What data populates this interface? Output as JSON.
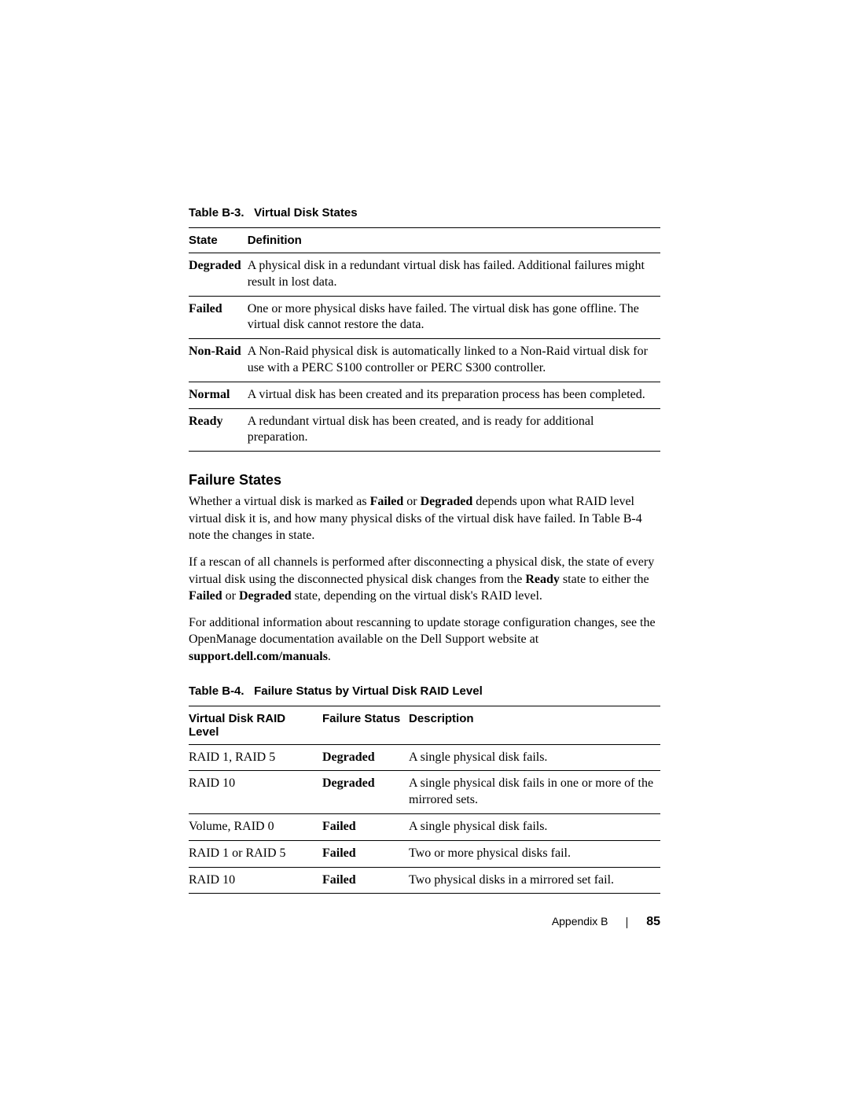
{
  "tableB3": {
    "caption_prefix": "Table B-3.",
    "caption_title": "Virtual Disk States",
    "headers": {
      "state": "State",
      "definition": "Definition"
    },
    "rows": [
      {
        "state": "Degraded",
        "definition": "A physical disk in a redundant virtual disk has failed. Additional failures might result in lost data."
      },
      {
        "state": "Failed",
        "definition": "One or more physical disks have failed. The virtual disk has gone offline. The virtual disk cannot restore the data."
      },
      {
        "state": "Non-Raid",
        "definition": "A Non-Raid physical disk is automatically linked to a Non-Raid virtual disk for use with a PERC S100 controller or PERC S300 controller."
      },
      {
        "state": "Normal",
        "definition": "A virtual disk has been created and its preparation process has been completed."
      },
      {
        "state": "Ready",
        "definition": "A redundant virtual disk has been created, and is ready for additional preparation."
      }
    ]
  },
  "section": {
    "heading": "Failure States",
    "para1": {
      "t1": "Whether a virtual disk is marked as ",
      "b1": "Failed",
      "t2": " or ",
      "b2": "Degraded",
      "t3": " depends upon what RAID level virtual disk it is, and how many physical disks of the virtual disk have failed. In Table B-4 note the changes in state."
    },
    "para2": {
      "t1": "If a rescan of all channels is performed after disconnecting a physical disk, the state of every virtual disk using the disconnected physical disk changes from the ",
      "b1": "Ready",
      "t2": " state to either the ",
      "b2": "Failed",
      "t3": " or ",
      "b3": "Degraded",
      "t4": " state, depending on the virtual disk's RAID level."
    },
    "para3": {
      "t1": "For additional information about rescanning to update storage configuration changes, see the OpenManage documentation available on the Dell Support website at ",
      "b1": "support.dell.com/manuals",
      "t2": "."
    }
  },
  "tableB4": {
    "caption_prefix": "Table B-4.",
    "caption_title": "Failure Status by Virtual Disk RAID Level",
    "headers": {
      "raid": "Virtual Disk RAID Level",
      "status": "Failure Status",
      "desc": "Description"
    },
    "rows": [
      {
        "raid": "RAID 1, RAID 5",
        "status": "Degraded",
        "desc": "A single physical disk fails."
      },
      {
        "raid": "RAID 10",
        "status": "Degraded",
        "desc": "A single physical disk fails in one or more of the mirrored sets."
      },
      {
        "raid": "Volume, RAID 0",
        "status": "Failed",
        "desc": "A single physical disk fails."
      },
      {
        "raid": "RAID 1 or RAID 5",
        "status": "Failed",
        "desc": "Two or more physical disks fail."
      },
      {
        "raid": "RAID 10",
        "status": "Failed",
        "desc": "Two physical disks in a mirrored set fail."
      }
    ]
  },
  "footer": {
    "label": "Appendix B",
    "page": "85"
  }
}
